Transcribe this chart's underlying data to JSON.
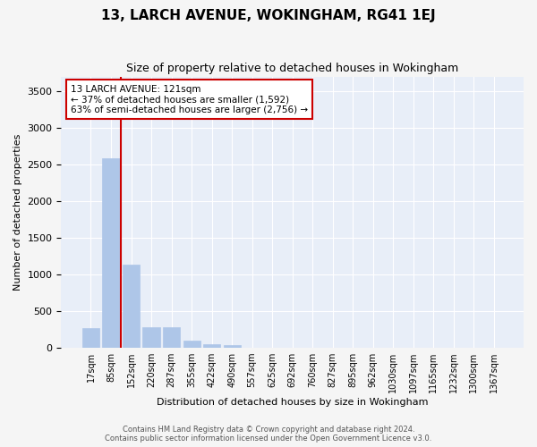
{
  "title": "13, LARCH AVENUE, WOKINGHAM, RG41 1EJ",
  "subtitle": "Size of property relative to detached houses in Wokingham",
  "xlabel": "Distribution of detached houses by size in Wokingham",
  "ylabel": "Number of detached properties",
  "bar_color": "#aec6e8",
  "bar_edge_color": "#aec6e8",
  "background_color": "#e8eef8",
  "grid_color": "#ffffff",
  "annotation_line_color": "#cc0000",
  "annotation_title": "13 LARCH AVENUE: 121sqm",
  "annotation_line1": "← 37% of detached houses are smaller (1,592)",
  "annotation_line2": "63% of semi-detached houses are larger (2,756) →",
  "categories": [
    "17sqm",
    "85sqm",
    "152sqm",
    "220sqm",
    "287sqm",
    "355sqm",
    "422sqm",
    "490sqm",
    "557sqm",
    "625sqm",
    "692sqm",
    "760sqm",
    "827sqm",
    "895sqm",
    "962sqm",
    "1030sqm",
    "1097sqm",
    "1165sqm",
    "1232sqm",
    "1300sqm",
    "1367sqm"
  ],
  "values": [
    270,
    2580,
    1130,
    285,
    285,
    95,
    55,
    40,
    0,
    0,
    0,
    0,
    0,
    0,
    0,
    0,
    0,
    0,
    0,
    0,
    0
  ],
  "ylim": [
    0,
    3700
  ],
  "yticks": [
    0,
    500,
    1000,
    1500,
    2000,
    2500,
    3000,
    3500
  ],
  "red_line_bin_index": 1,
  "footer_line1": "Contains HM Land Registry data © Crown copyright and database right 2024.",
  "footer_line2": "Contains public sector information licensed under the Open Government Licence v3.0."
}
